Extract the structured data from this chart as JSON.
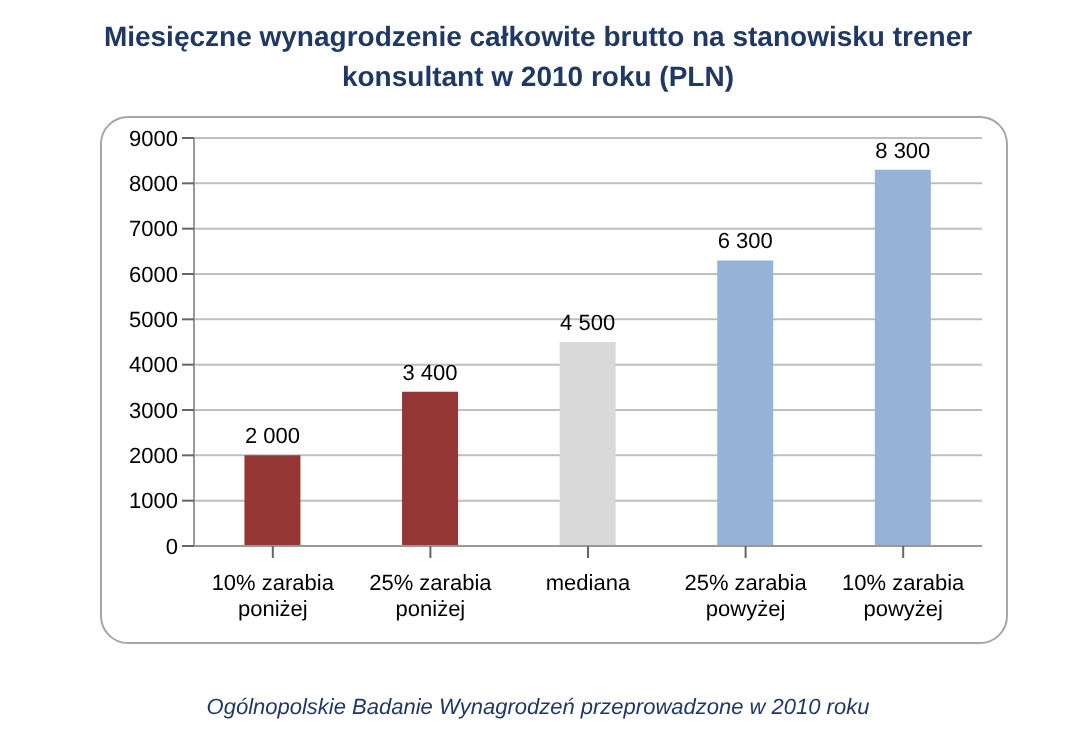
{
  "chart_data": {
    "type": "bar",
    "title": "Miesięczne wynagrodzenie całkowite brutto na stanowisku trener konsultant w 2010 roku (PLN)",
    "categories": [
      "10% zarabia poniżej",
      "25% zarabia poniżej",
      "mediana",
      "25% zarabia powyżej",
      "10% zarabia powyżej"
    ],
    "values": [
      2000,
      3400,
      4500,
      6300,
      8300
    ],
    "colors": [
      "#953735",
      "#953735",
      "#d9d9d9",
      "#95b3d7",
      "#95b3d7"
    ],
    "value_labels": [
      "2 000",
      "3 400",
      "4 500",
      "6 300",
      "8 300"
    ],
    "ylim": [
      0,
      9000
    ],
    "yticks": [
      0,
      1000,
      2000,
      3000,
      4000,
      5000,
      6000,
      7000,
      8000,
      9000
    ],
    "grid": "y",
    "annotations": [
      "Ogólnopolskie Badanie Wynagrodzeń przeprowadzone w 2010 roku"
    ]
  }
}
